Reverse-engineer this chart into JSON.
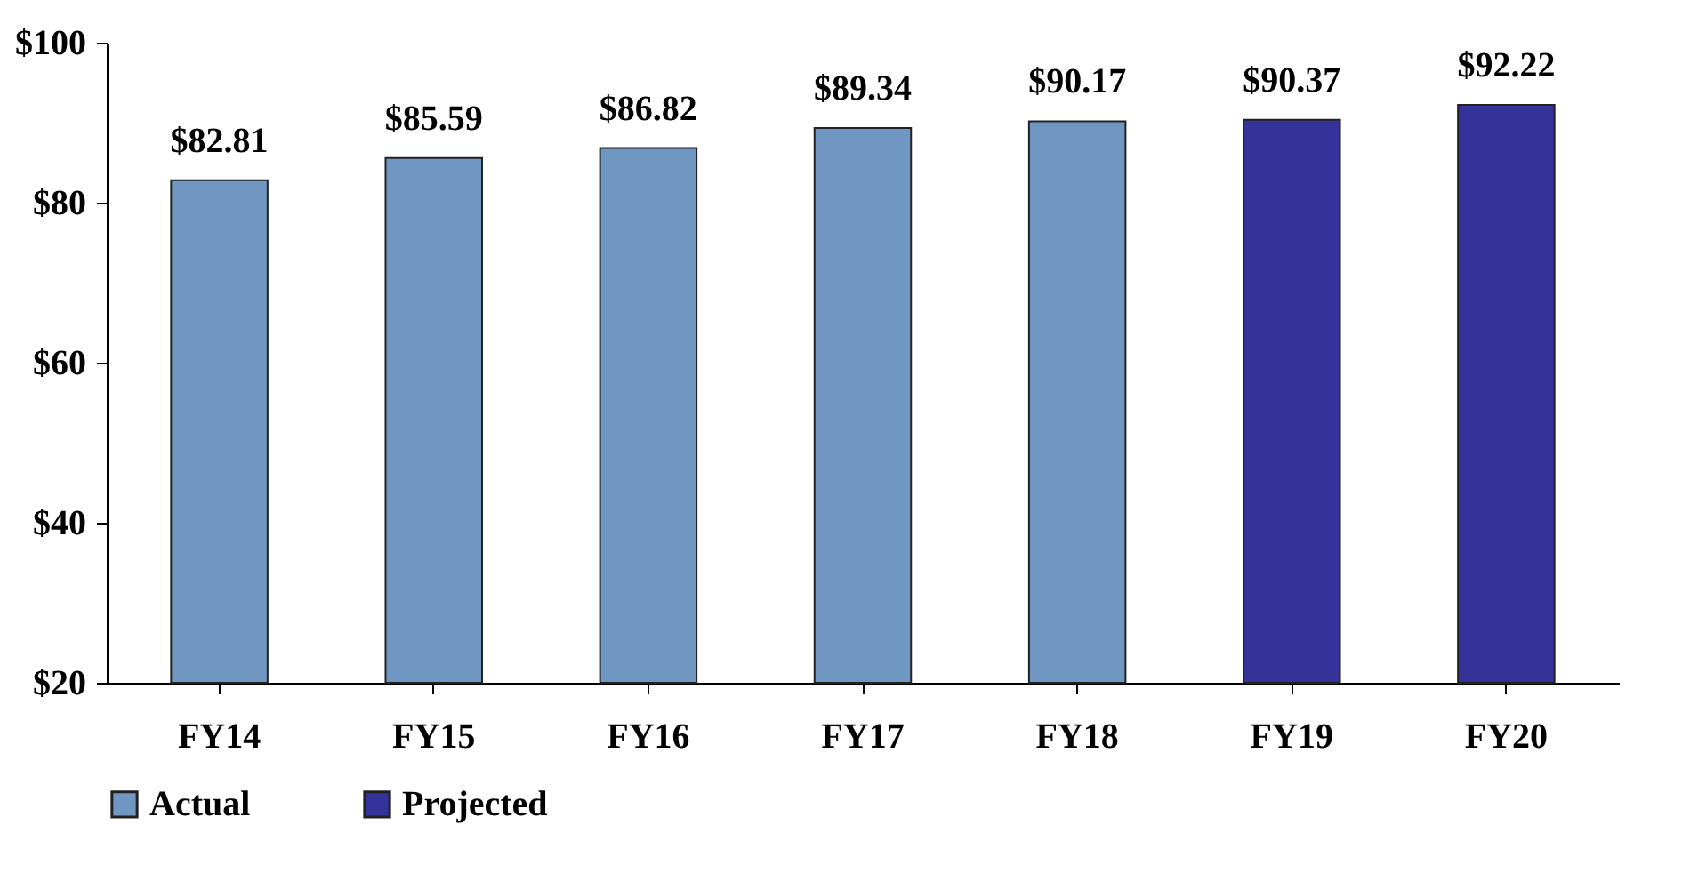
{
  "chart_data": {
    "type": "bar",
    "categories": [
      "FY14",
      "FY15",
      "FY16",
      "FY17",
      "FY18",
      "FY19",
      "FY20"
    ],
    "series": [
      {
        "name": "Actual",
        "color": "#6f97c2",
        "values": [
          82.81,
          85.59,
          86.82,
          89.34,
          90.17,
          null,
          null
        ],
        "value_labels": [
          "$82.81",
          "$85.59",
          "$86.82",
          "$89.34",
          "$90.17",
          null,
          null
        ]
      },
      {
        "name": "Projected",
        "color": "#333399",
        "values": [
          null,
          null,
          null,
          null,
          null,
          90.37,
          92.22
        ],
        "value_labels": [
          null,
          null,
          null,
          null,
          null,
          "$90.37",
          "$92.22"
        ]
      }
    ],
    "ylim": [
      20,
      100
    ],
    "yticks": [
      {
        "value": 20,
        "label": "$20"
      },
      {
        "value": 40,
        "label": "$40"
      },
      {
        "value": 60,
        "label": "$60"
      },
      {
        "value": 80,
        "label": "$80"
      },
      {
        "value": 100,
        "label": "$100"
      }
    ],
    "grid": false,
    "legend": "bottom"
  }
}
